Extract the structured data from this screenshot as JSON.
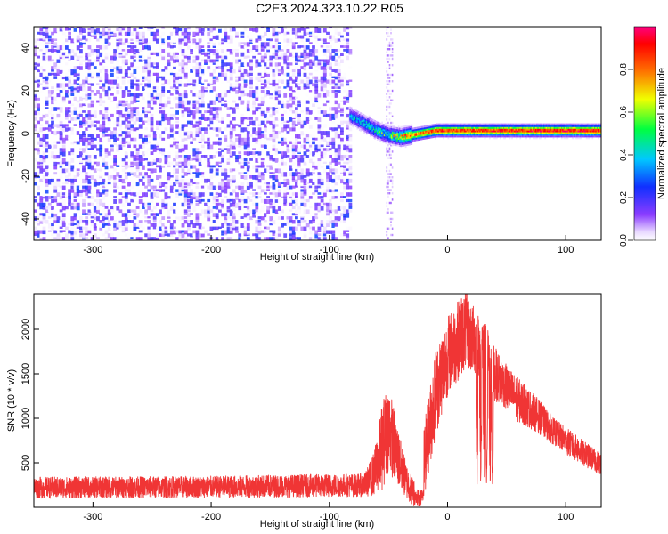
{
  "figure_title": "C2E3.2024.323.10.22.R05",
  "colors": {
    "snr_line": "#f03535",
    "spectrogram_noise": "#7a2cf0",
    "axis": "#000000"
  },
  "chart_data": [
    {
      "type": "heatmap",
      "title": "C2E3.2024.323.10.22.R05",
      "xlabel": "Height of straight line (km)",
      "ylabel": "Frequency (Hz)",
      "xlim": [
        -350,
        130
      ],
      "ylim": [
        -50,
        50
      ],
      "x_ticks": [
        -300,
        -200,
        -100,
        0,
        100
      ],
      "y_ticks": [
        -40,
        -20,
        0,
        20,
        40
      ],
      "colorbar": {
        "label": "Normalized spectral amplitude",
        "range": [
          0.0,
          1.0
        ],
        "ticks": [
          0.0,
          0.2,
          0.4,
          0.6,
          0.8
        ],
        "colormap": "rainbow (white at 0, violet → blue → cyan → green → yellow → red → magenta)"
      },
      "features": {
        "noise_region_x": [
          -350,
          -83
        ],
        "noise_amplitude": 0.15,
        "vertical_noise_stripe_x": [
          -52,
          -47
        ],
        "carrier_onset_x": -83,
        "carrier_trace": {
          "x": [
            -83,
            -70,
            -60,
            -50,
            -40,
            -30,
            -20,
            -10,
            0,
            20,
            50,
            80,
            100,
            130
          ],
          "freq_hz": [
            8,
            4,
            1,
            -1,
            -2,
            -1,
            0,
            1,
            1,
            1,
            1,
            1,
            1,
            1
          ],
          "peak_amplitude": [
            0.35,
            0.45,
            0.5,
            0.55,
            0.75,
            0.8,
            0.85,
            0.9,
            0.9,
            0.9,
            0.92,
            0.95,
            0.95,
            0.95
          ]
        }
      }
    },
    {
      "type": "line",
      "xlabel": "Height of straight line (km)",
      "ylabel": "SNR (10 * v/v)",
      "xlim": [
        -350,
        130
      ],
      "ylim": [
        0,
        2400
      ],
      "x_ticks": [
        -300,
        -200,
        -100,
        0,
        100
      ],
      "y_ticks": [
        500,
        1000,
        1500,
        2000
      ],
      "series": [
        {
          "envelope_x": [
            -350,
            -200,
            -70,
            -62,
            -55,
            -50,
            -45,
            -40,
            -35,
            -28,
            -23,
            -20,
            -10,
            0,
            10,
            15,
            20,
            30,
            40,
            50,
            60,
            75,
            90,
            110,
            130
          ],
          "envelope_mean": [
            220,
            230,
            250,
            380,
            700,
            900,
            700,
            480,
            300,
            150,
            100,
            500,
            1300,
            1700,
            1900,
            2000,
            1900,
            1800,
            1500,
            1350,
            1200,
            1050,
            850,
            650,
            480
          ],
          "envelope_spread": [
            120,
            120,
            130,
            250,
            500,
            500,
            400,
            300,
            200,
            150,
            100,
            400,
            500,
            450,
            450,
            450,
            400,
            350,
            300,
            250,
            250,
            200,
            150,
            150,
            120
          ],
          "deep_notches_x": [
            25,
            28,
            31,
            33,
            36,
            38
          ]
        }
      ]
    }
  ]
}
